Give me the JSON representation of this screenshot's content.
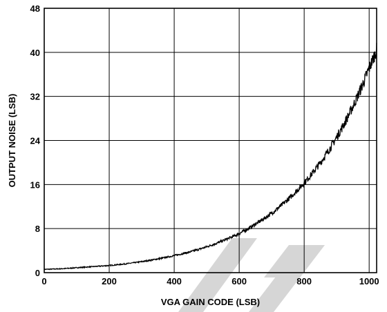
{
  "chart_data": {
    "type": "line",
    "title": "",
    "xlabel": "VGA GAIN CODE (LSB)",
    "ylabel": "OUTPUT NOISE (LSB)",
    "xlim": [
      0,
      1023
    ],
    "ylim": [
      0,
      48
    ],
    "xticks": [
      0,
      200,
      400,
      600,
      800,
      1000
    ],
    "yticks": [
      0,
      8,
      16,
      24,
      32,
      40,
      48
    ],
    "grid": true,
    "legend": "none",
    "line_color": "#000000",
    "series": [
      {
        "x": [
          0,
          50,
          100,
          150,
          200,
          250,
          300,
          350,
          400,
          450,
          500,
          550,
          600,
          650,
          700,
          750,
          800,
          850,
          900,
          950,
          1000,
          1023
        ],
        "y": [
          0.6,
          0.7,
          0.9,
          1.1,
          1.3,
          1.6,
          2.0,
          2.5,
          3.1,
          3.8,
          4.7,
          5.8,
          7.1,
          8.8,
          10.8,
          13.3,
          16.3,
          20.0,
          24.6,
          30.2,
          37.1,
          40.5
        ]
      }
    ]
  },
  "watermark": {
    "color": "#d6d6d6"
  }
}
